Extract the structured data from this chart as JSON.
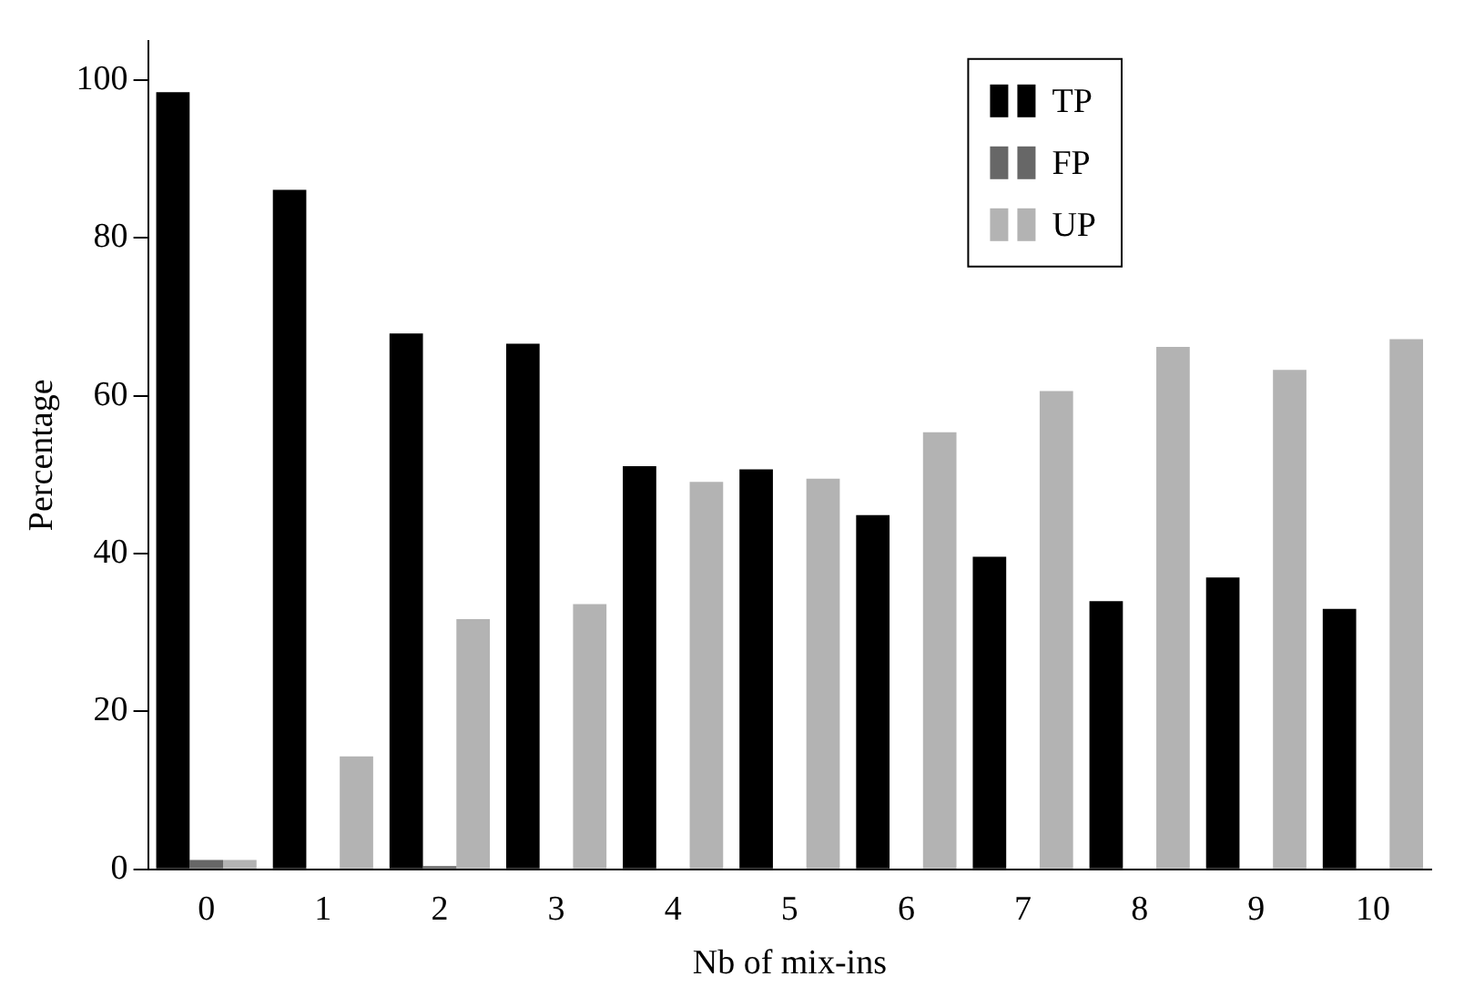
{
  "chart_data": {
    "type": "bar",
    "xlabel": "Nb of mix-ins",
    "ylabel": "Percentage",
    "categories": [
      "0",
      "1",
      "2",
      "3",
      "4",
      "5",
      "6",
      "7",
      "8",
      "9",
      "10"
    ],
    "series": [
      {
        "name": "TP",
        "color": "#000000",
        "values": [
          98.5,
          86.1,
          67.9,
          66.6,
          51.1,
          50.7,
          44.9,
          39.6,
          34.0,
          37.0,
          33.0
        ]
      },
      {
        "name": "FP",
        "color": "#676767",
        "values": [
          1.2,
          0,
          0.4,
          0,
          0,
          0,
          0,
          0,
          0,
          0,
          0
        ]
      },
      {
        "name": "UP",
        "color": "#b3b3b3",
        "values": [
          1.2,
          14.3,
          31.7,
          33.6,
          49.1,
          49.5,
          55.4,
          60.6,
          66.2,
          63.3,
          67.2
        ]
      }
    ],
    "ylim": [
      0,
      105
    ],
    "yticks": [
      0,
      20,
      40,
      60,
      80,
      100
    ],
    "grid": false,
    "legend": "top right"
  }
}
